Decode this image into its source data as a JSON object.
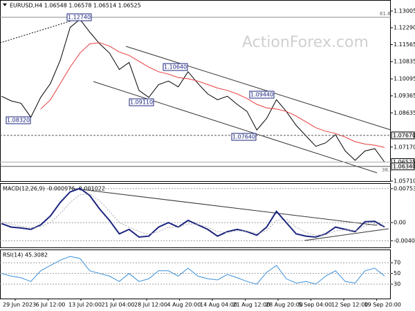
{
  "chart_data": [
    {
      "type": "line",
      "title": "EURUSD,H4 1.06548 1.06578 1.06514 1.06525",
      "watermark": "ActionForex.com",
      "ylim": [
        1.0571,
        1.1336
      ],
      "yticks": [
        {
          "value": 1.13005,
          "label": "1.13005"
        },
        {
          "value": 1.1229,
          "label": "1.12290"
        },
        {
          "value": 1.11565,
          "label": "1.11565"
        },
        {
          "value": 1.10835,
          "label": "1.10835"
        },
        {
          "value": 1.10095,
          "label": "1.10095"
        },
        {
          "value": 1.09365,
          "label": "1.09365"
        },
        {
          "value": 1.08635,
          "label": "1.08635"
        },
        {
          "value": 1.0717,
          "label": "1.07170"
        },
        {
          "value": 1.0571,
          "label": "1.05710"
        }
      ],
      "grid": false,
      "xtick_labels": [
        "29 Jun 2023",
        "6 Jul 12:00",
        "13 Jul 20:00",
        "21 Jul 04:00",
        "28 Jul 12:00",
        "4 Aug 20:00",
        "14 Aug 04:00",
        "21 Aug 12:00",
        "28 Aug 20:00",
        "5 Sep 04:00",
        "12 Sep 12:00",
        "19 Sep 20:00"
      ],
      "series": [
        {
          "name": "EURUSD",
          "color": "#000000",
          "values": [
            1.0935,
            1.0915,
            1.0905,
            1.0845,
            1.093,
            1.099,
            1.109,
            1.123,
            1.1265,
            1.121,
            1.116,
            1.112,
            1.105,
            1.108,
            1.096,
            1.093,
            1.0985,
            1.1,
            1.0975,
            1.104,
            1.099,
            1.0945,
            1.092,
            1.0935,
            1.09,
            1.087,
            1.079,
            1.084,
            1.092,
            1.087,
            1.081,
            1.0765,
            1.072,
            1.0735,
            1.077,
            1.07,
            1.066,
            1.07,
            1.071,
            1.06525
          ]
        },
        {
          "name": "MA",
          "color": "#e8393b",
          "values": [
            null,
            null,
            null,
            null,
            1.088,
            1.092,
            1.099,
            1.106,
            1.112,
            1.116,
            1.1165,
            1.115,
            1.1125,
            1.111,
            1.1085,
            1.106,
            1.104,
            1.103,
            1.1015,
            1.101,
            1.1,
            1.0985,
            1.097,
            1.096,
            1.0945,
            1.0925,
            1.09,
            1.0885,
            1.088,
            1.087,
            1.085,
            1.0825,
            1.08,
            1.0785,
            1.0775,
            1.076,
            1.074,
            1.073,
            1.0725,
            1.0715
          ]
        }
      ],
      "price_lines": [
        {
          "value": 1.0767,
          "label": "1.07670"
        },
        {
          "value": 1.06525,
          "label": "1.06525"
        },
        {
          "value": 1.0634,
          "label": "1.06340"
        }
      ],
      "annotations": [
        "1.12740",
        "1.10640",
        "1.09110",
        "1.09440",
        "1.07640",
        "1.08320",
        "61.8",
        "38.2"
      ]
    },
    {
      "type": "line",
      "title": "MACD(12,26,9) -0.000976 -0.001022",
      "ylim": [
        -0.0055,
        0.0086
      ],
      "yticks": [
        0.007538,
        {
          "value": 0,
          "label": "0.00"
        },
        -0.004027
      ],
      "grid": true,
      "series": [
        {
          "name": "MACD",
          "color": "#1a237e",
          "values": [
            -0.0002,
            -0.001,
            -0.0012,
            -0.0015,
            -0.0005,
            0.0015,
            0.0045,
            0.0068,
            0.0076,
            0.006,
            0.003,
            0.0005,
            -0.0025,
            -0.0015,
            -0.0032,
            -0.003,
            -0.001,
            0,
            -0.001,
            0.0005,
            -0.0005,
            -0.0015,
            -0.003,
            -0.002,
            -0.0015,
            -0.002,
            -0.0028,
            -0.001,
            0.0025,
            0,
            -0.0025,
            -0.003,
            -0.0032,
            -0.0025,
            -0.001,
            -0.0015,
            -0.002,
            0.0002,
            0.0003,
            -0.000976
          ]
        },
        {
          "name": "Signal",
          "color": "#a8a8a8",
          "values": [
            0.0002,
            -0.0004,
            -0.0008,
            -0.0011,
            -0.0009,
            0,
            0.002,
            0.0045,
            0.0062,
            0.0064,
            0.0048,
            0.0025,
            0,
            -0.001,
            -0.002,
            -0.0026,
            -0.002,
            -0.001,
            -0.001,
            -0.0003,
            -0.0004,
            -0.001,
            -0.002,
            -0.0022,
            -0.0018,
            -0.0019,
            -0.0024,
            -0.0018,
            0.0005,
            0.0008,
            -0.001,
            -0.0022,
            -0.0028,
            -0.0027,
            -0.0018,
            -0.0016,
            -0.0018,
            -0.0008,
            -0.0002,
            -0.001022
          ]
        }
      ]
    },
    {
      "type": "line",
      "title": "RSI(14) 45.3082",
      "ylim": [
        3,
        91
      ],
      "yticks": [
        70,
        50,
        30
      ],
      "grid": true,
      "series": [
        {
          "name": "RSI",
          "color": "#3a8fd9",
          "values": [
            50,
            45,
            42,
            35,
            55,
            65,
            75,
            82,
            78,
            55,
            50,
            45,
            35,
            50,
            35,
            40,
            55,
            55,
            45,
            60,
            45,
            40,
            38,
            48,
            42,
            35,
            30,
            52,
            65,
            40,
            32,
            35,
            30,
            45,
            55,
            35,
            32,
            55,
            60,
            45.3082
          ]
        }
      ]
    }
  ]
}
